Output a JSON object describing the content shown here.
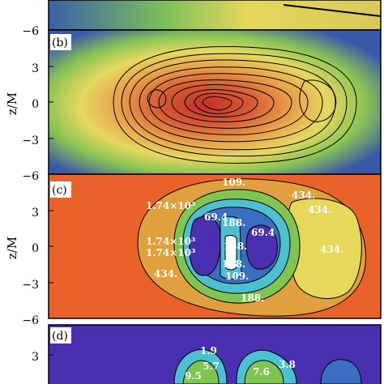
{
  "figure": {
    "y_axis_label": "z/M",
    "panels": [
      {
        "id": "a-partial",
        "label": ""
      },
      {
        "id": "b",
        "label": "(b)"
      },
      {
        "id": "c",
        "label": "(c)"
      },
      {
        "id": "d",
        "label": "(d)"
      }
    ]
  },
  "chart_data": [
    {
      "type": "heatmap",
      "panel": "(b)",
      "ylabel": "z/M",
      "ylim": [
        -6,
        6
      ],
      "yticks": [
        "3",
        "0",
        "−3",
        "−6"
      ],
      "boundary_ticks": [
        "−6"
      ],
      "contour_labels": []
    },
    {
      "type": "heatmap",
      "panel": "(c)",
      "ylabel": "z/M",
      "ylim": [
        -6,
        6
      ],
      "yticks": [
        "3",
        "0",
        "−3",
        "−6"
      ],
      "contour_labels": [
        "1.74×10³",
        "109.",
        "434.",
        "69.4",
        "188.",
        "434.",
        "1.74×10³",
        "1.74×10³",
        "188.",
        "69.4",
        "434.",
        "188.",
        "434.",
        "109.",
        "188."
      ]
    },
    {
      "type": "heatmap",
      "panel": "(d)",
      "ylabel": "",
      "yticks": [
        "3"
      ],
      "contour_labels": [
        "1.9",
        "5.7",
        "7.6",
        "3.8",
        "9.5"
      ]
    }
  ],
  "colors": {
    "blue": "#3a58a8",
    "green": "#5db54a",
    "yellow": "#e8d85a",
    "orange": "#e8622a",
    "red": "#c0392b",
    "purple": "#4a2fb0",
    "cyan": "#4cc0d0"
  }
}
